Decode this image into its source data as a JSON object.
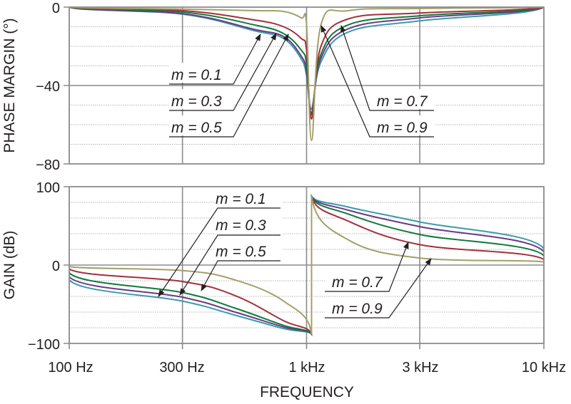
{
  "chart_data": [
    {
      "type": "line",
      "ylabel": "PHASE MARGIN (°)",
      "xscale": "log",
      "xlim": [
        100,
        10000
      ],
      "ylim": [
        -80,
        0
      ],
      "yticks": [
        0,
        -40,
        -80
      ],
      "ytick_labels": [
        "0",
        "−40",
        "−80"
      ],
      "grid": true,
      "series": [
        {
          "name": "m = 0.1",
          "color": "#3b9bab",
          "points": [
            [
              100,
              0
            ],
            [
              300,
              -3.6
            ],
            [
              600,
              -12
            ],
            [
              800,
              -16
            ],
            [
              950,
              -26.5
            ],
            [
              1000,
              -35
            ],
            [
              1050,
              -52
            ],
            [
              1150,
              -28
            ],
            [
              1500,
              -12.7
            ],
            [
              3000,
              -7
            ],
            [
              10000,
              0
            ]
          ]
        },
        {
          "name": "m = 0.3",
          "color": "#6b3a86",
          "points": [
            [
              100,
              0
            ],
            [
              300,
              -3.3
            ],
            [
              600,
              -11.3
            ],
            [
              800,
              -15
            ],
            [
              950,
              -25
            ],
            [
              1000,
              -33
            ],
            [
              1050,
              -54
            ],
            [
              1150,
              -26
            ],
            [
              1500,
              -11
            ],
            [
              3000,
              -5.5
            ],
            [
              10000,
              0
            ]
          ]
        },
        {
          "name": "m = 0.5",
          "color": "#0f7a3a",
          "points": [
            [
              100,
              0
            ],
            [
              300,
              -2.5
            ],
            [
              600,
              -9
            ],
            [
              800,
              -13.5
            ],
            [
              950,
              -22
            ],
            [
              1000,
              -29
            ],
            [
              1050,
              -55
            ],
            [
              1150,
              -24
            ],
            [
              1500,
              -9
            ],
            [
              3000,
              -4.4
            ],
            [
              10000,
              0
            ]
          ]
        },
        {
          "name": "m = 0.7",
          "color": "#a3303c",
          "points": [
            [
              100,
              0
            ],
            [
              300,
              -1.8
            ],
            [
              600,
              -6.5
            ],
            [
              800,
              -10
            ],
            [
              950,
              -16
            ],
            [
              1000,
              -22
            ],
            [
              1050,
              -57
            ],
            [
              1150,
              -20
            ],
            [
              1500,
              -6
            ],
            [
              3000,
              -3
            ],
            [
              10000,
              0
            ]
          ]
        },
        {
          "name": "m = 0.9",
          "color": "#a3a068",
          "points": [
            [
              100,
              0
            ],
            [
              300,
              -1
            ],
            [
              600,
              -1.8
            ],
            [
              800,
              -2.2
            ],
            [
              950,
              -5.5
            ],
            [
              1000,
              -9
            ],
            [
              1050,
              -68
            ],
            [
              1150,
              -9
            ],
            [
              1500,
              -1.8
            ],
            [
              3000,
              -0.7
            ],
            [
              10000,
              0
            ]
          ]
        }
      ]
    },
    {
      "type": "line",
      "xlabel": "FREQUENCY",
      "ylabel": "GAIN (dB)",
      "xscale": "log",
      "xlim": [
        100,
        10000
      ],
      "ylim": [
        -100,
        100
      ],
      "xticks": [
        100,
        300,
        1000,
        3000,
        10000
      ],
      "xtick_labels": [
        "100 Hz",
        "300 Hz",
        "1 kHz",
        "3 kHz",
        "10 kHz"
      ],
      "yticks": [
        100,
        0,
        -100
      ],
      "ytick_labels": [
        "100",
        "0",
        "−100"
      ],
      "grid": true,
      "series": [
        {
          "name": "m = 0.1",
          "color": "#3b9bab",
          "points": [
            [
              100,
              -19
            ],
            [
              300,
              -46
            ],
            [
              500,
              -64
            ],
            [
              800,
              -81
            ],
            [
              1050,
              -88
            ],
            [
              1050,
              88
            ],
            [
              1500,
              74
            ],
            [
              3000,
              55
            ],
            [
              10000,
              21
            ]
          ]
        },
        {
          "name": "m = 0.3",
          "color": "#6b3a86",
          "points": [
            [
              100,
              -15
            ],
            [
              300,
              -41
            ],
            [
              500,
              -60
            ],
            [
              800,
              -79
            ],
            [
              1050,
              -88
            ],
            [
              1050,
              88
            ],
            [
              1500,
              70
            ],
            [
              3000,
              49
            ],
            [
              10000,
              17
            ]
          ]
        },
        {
          "name": "m = 0.5",
          "color": "#0f7a3a",
          "points": [
            [
              100,
              -10
            ],
            [
              300,
              -35
            ],
            [
              500,
              -55
            ],
            [
              800,
              -77
            ],
            [
              1050,
              -88
            ],
            [
              1050,
              88
            ],
            [
              1500,
              65
            ],
            [
              3000,
              39
            ],
            [
              10000,
              12
            ]
          ]
        },
        {
          "name": "m = 0.7",
          "color": "#a3303c",
          "points": [
            [
              100,
              -5
            ],
            [
              300,
              -21
            ],
            [
              500,
              -39
            ],
            [
              800,
              -71
            ],
            [
              1050,
              -88
            ],
            [
              1050,
              88
            ],
            [
              1500,
              56
            ],
            [
              3000,
              26
            ],
            [
              10000,
              7
            ]
          ]
        },
        {
          "name": "m = 0.9",
          "color": "#a3a068",
          "points": [
            [
              100,
              -2
            ],
            [
              300,
              -7
            ],
            [
              500,
              -19
            ],
            [
              800,
              -46
            ],
            [
              1050,
              -88
            ],
            [
              1050,
              88
            ],
            [
              1500,
              32
            ],
            [
              3000,
              9
            ],
            [
              10000,
              4
            ]
          ]
        }
      ]
    }
  ]
}
